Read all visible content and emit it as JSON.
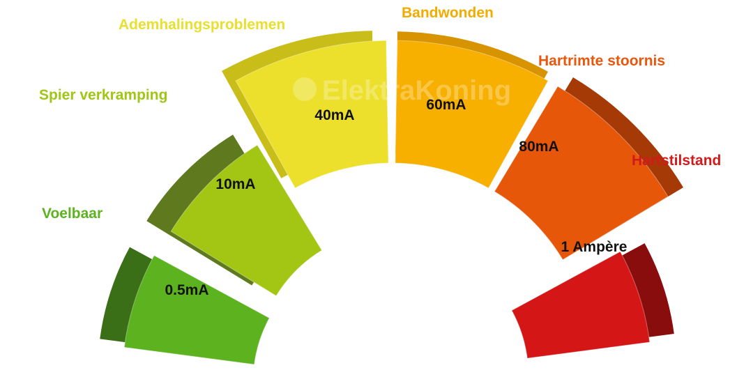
{
  "watermark": "ElektraKoning",
  "segments": [
    {
      "value": "0.5mA",
      "effect": "Voelbaar",
      "color": "#5cb31f",
      "dark": "#3a6e17",
      "label_color": "#5cb31f"
    },
    {
      "value": "10mA",
      "effect": "Spier verkramping",
      "color": "#a3c614",
      "dark": "#5f7a1e",
      "label_color": "#a0c615"
    },
    {
      "value": "40mA",
      "effect": "Ademhalingsproblemen",
      "color": "#ede02c",
      "dark": "#c9bd1a",
      "label_color": "#e9df2e"
    },
    {
      "value": "60mA",
      "effect": "Bandwonden",
      "color": "#f7b000",
      "dark": "#d79300",
      "label_color": "#f2ac00"
    },
    {
      "value": "80mA",
      "effect": "Hartrimte stoornis",
      "color": "#e65709",
      "dark": "#a63a07",
      "label_color": "#e8570d"
    },
    {
      "value": "1 Ampère",
      "effect": "Hartstilstand",
      "color": "#d41616",
      "dark": "#8a0d0d",
      "label_color": "#d21a1a"
    }
  ]
}
